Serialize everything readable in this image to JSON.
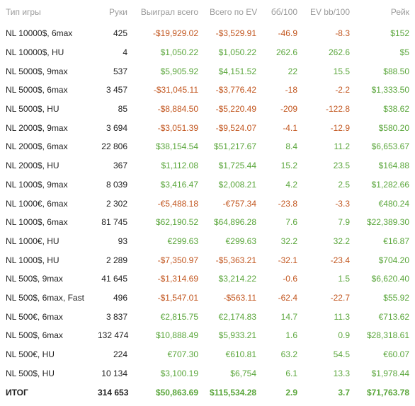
{
  "colors": {
    "negative": "#c2561f",
    "positive": "#5aa63b",
    "header": "#9a9a9a"
  },
  "columns": [
    "Тип игры",
    "Руки",
    "Выиграл всего",
    "Всего по EV",
    "бб/100",
    "EV bb/100",
    "Рейк"
  ],
  "rows": [
    {
      "type": "NL 10000$, 6max",
      "hands": "425",
      "won": "-$19,929.02",
      "ev": "-$3,529.91",
      "bb100": "-46.9",
      "evbb100": "-8.3",
      "rake": "$152"
    },
    {
      "type": "NL 10000$, HU",
      "hands": "4",
      "won": "$1,050.22",
      "ev": "$1,050.22",
      "bb100": "262.6",
      "evbb100": "262.6",
      "rake": "$5"
    },
    {
      "type": "NL 5000$, 9max",
      "hands": "537",
      "won": "$5,905.92",
      "ev": "$4,151.52",
      "bb100": "22",
      "evbb100": "15.5",
      "rake": "$88.50"
    },
    {
      "type": "NL 5000$, 6max",
      "hands": "3 457",
      "won": "-$31,045.11",
      "ev": "-$3,776.42",
      "bb100": "-18",
      "evbb100": "-2.2",
      "rake": "$1,333.50"
    },
    {
      "type": "NL 5000$, HU",
      "hands": "85",
      "won": "-$8,884.50",
      "ev": "-$5,220.49",
      "bb100": "-209",
      "evbb100": "-122.8",
      "rake": "$38.62"
    },
    {
      "type": "NL 2000$, 9max",
      "hands": "3 694",
      "won": "-$3,051.39",
      "ev": "-$9,524.07",
      "bb100": "-4.1",
      "evbb100": "-12.9",
      "rake": "$580.20"
    },
    {
      "type": "NL 2000$, 6max",
      "hands": "22 806",
      "won": "$38,154.54",
      "ev": "$51,217.67",
      "bb100": "8.4",
      "evbb100": "11.2",
      "rake": "$6,653.67"
    },
    {
      "type": "NL 2000$, HU",
      "hands": "367",
      "won": "$1,112.08",
      "ev": "$1,725.44",
      "bb100": "15.2",
      "evbb100": "23.5",
      "rake": "$164.88"
    },
    {
      "type": "NL 1000$, 9max",
      "hands": "8 039",
      "won": "$3,416.47",
      "ev": "$2,008.21",
      "bb100": "4.2",
      "evbb100": "2.5",
      "rake": "$1,282.66"
    },
    {
      "type": "NL 1000€, 6max",
      "hands": "2 302",
      "won": "-€5,488.18",
      "ev": "-€757.34",
      "bb100": "-23.8",
      "evbb100": "-3.3",
      "rake": "€480.24"
    },
    {
      "type": "NL 1000$, 6max",
      "hands": "81 745",
      "won": "$62,190.52",
      "ev": "$64,896.28",
      "bb100": "7.6",
      "evbb100": "7.9",
      "rake": "$22,389.30"
    },
    {
      "type": "NL 1000€, HU",
      "hands": "93",
      "won": "€299.63",
      "ev": "€299.63",
      "bb100": "32.2",
      "evbb100": "32.2",
      "rake": "€16.87"
    },
    {
      "type": "NL 1000$, HU",
      "hands": "2 289",
      "won": "-$7,350.97",
      "ev": "-$5,363.21",
      "bb100": "-32.1",
      "evbb100": "-23.4",
      "rake": "$704.20"
    },
    {
      "type": "NL 500$, 9max",
      "hands": "41 645",
      "won": "-$1,314.69",
      "ev": "$3,214.22",
      "bb100": "-0.6",
      "evbb100": "1.5",
      "rake": "$6,620.40"
    },
    {
      "type": "NL 500$, 6max, Fast",
      "hands": "496",
      "won": "-$1,547.01",
      "ev": "-$563.11",
      "bb100": "-62.4",
      "evbb100": "-22.7",
      "rake": "$55.92"
    },
    {
      "type": "NL 500€, 6max",
      "hands": "3 837",
      "won": "€2,815.75",
      "ev": "€2,174.83",
      "bb100": "14.7",
      "evbb100": "11.3",
      "rake": "€713.62"
    },
    {
      "type": "NL 500$, 6max",
      "hands": "132 474",
      "won": "$10,888.49",
      "ev": "$5,933.21",
      "bb100": "1.6",
      "evbb100": "0.9",
      "rake": "$28,318.61"
    },
    {
      "type": "NL 500€, HU",
      "hands": "224",
      "won": "€707.30",
      "ev": "€610.81",
      "bb100": "63.2",
      "evbb100": "54.5",
      "rake": "€60.07"
    },
    {
      "type": "NL 500$, HU",
      "hands": "10 134",
      "won": "$3,100.19",
      "ev": "$6,754",
      "bb100": "6.1",
      "evbb100": "13.3",
      "rake": "$1,978.44"
    }
  ],
  "total": {
    "type": "ИТОГ",
    "hands": "314 653",
    "won": "$50,863.69",
    "ev": "$115,534.28",
    "bb100": "2.9",
    "evbb100": "3.7",
    "rake": "$71,763.78"
  }
}
